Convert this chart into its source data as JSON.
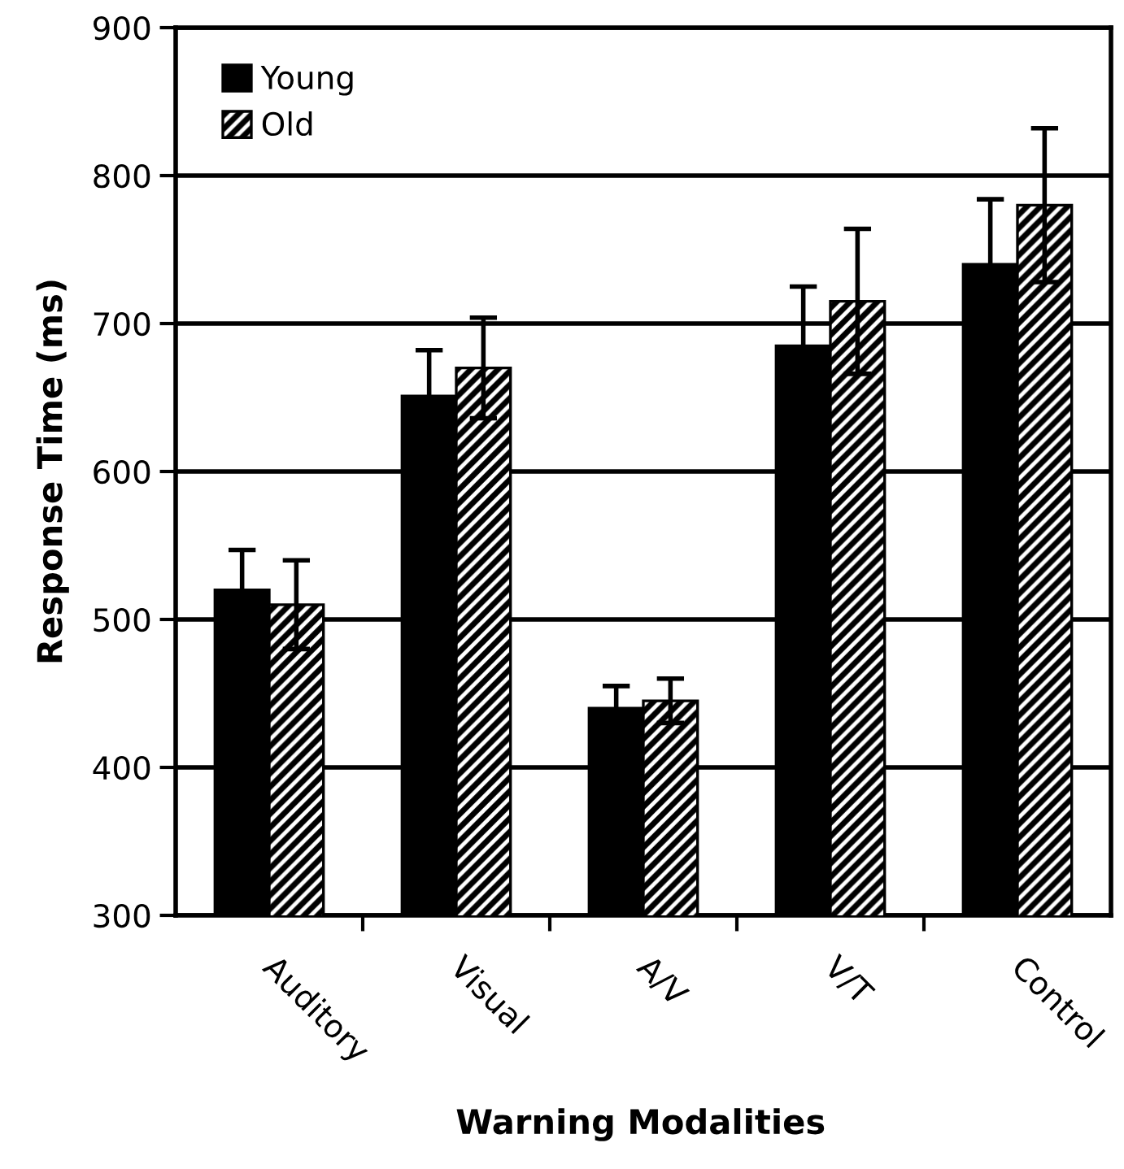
{
  "chart_data": {
    "type": "bar",
    "xlabel": "Warning Modalities",
    "ylabel": "Response Time (ms)",
    "categories": [
      "Auditory",
      "Visual",
      "A/V",
      "V/T",
      "Control"
    ],
    "series": [
      {
        "name": "Young",
        "color": "#000000",
        "values": [
          520,
          651,
          440,
          685,
          740
        ],
        "errors": [
          27,
          31,
          15,
          40,
          44
        ]
      },
      {
        "name": "Old",
        "color": "#000000",
        "values": [
          510,
          670,
          445,
          715,
          780
        ],
        "errors": [
          30,
          34,
          15,
          49,
          52
        ]
      }
    ],
    "ylim": [
      300,
      900
    ],
    "yticks": [
      300,
      400,
      500,
      600,
      700,
      800,
      900
    ],
    "grid": "y",
    "legend": "top left"
  }
}
